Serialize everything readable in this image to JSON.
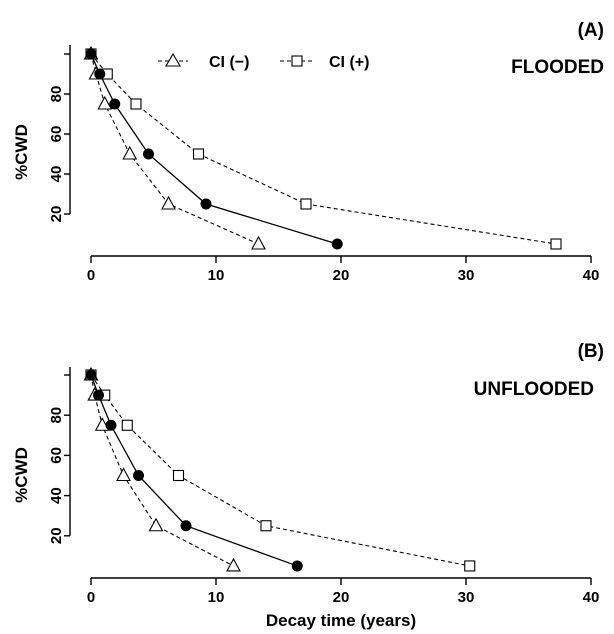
{
  "chart_data": [
    {
      "type": "line",
      "panel_label": "(A)",
      "condition": "FLOODED",
      "xlabel": "",
      "ylabel": "%CWD",
      "xlim": [
        -1,
        41
      ],
      "ylim": [
        0,
        100
      ],
      "xticks": [
        0,
        10,
        20,
        30,
        40
      ],
      "yticks": [
        20,
        40,
        60,
        80
      ],
      "legend": {
        "placement": "top-left",
        "entries": [
          "CI (−)",
          "CI (+)"
        ]
      },
      "series": [
        {
          "name": "",
          "marker": "circle",
          "style": "solid",
          "x": [
            0,
            0.7,
            1.9,
            4.6,
            9.2,
            19.7
          ],
          "y": [
            100,
            90,
            75,
            50,
            25,
            5
          ]
        },
        {
          "name": "CI (−)",
          "marker": "triangle",
          "style": "dashed",
          "x": [
            0,
            0.4,
            1.1,
            3.1,
            6.2,
            13.4
          ],
          "y": [
            100,
            90,
            75,
            50,
            25,
            5
          ]
        },
        {
          "name": "CI (+)",
          "marker": "square",
          "style": "dashed",
          "x": [
            0,
            1.3,
            3.6,
            8.6,
            17.2,
            37.2
          ],
          "y": [
            100,
            90,
            75,
            50,
            25,
            5
          ]
        }
      ]
    },
    {
      "type": "line",
      "panel_label": "(B)",
      "condition": "UNFLOODED",
      "xlabel": "Decay time (years)",
      "ylabel": "%CWD",
      "xlim": [
        -1,
        41
      ],
      "ylim": [
        0,
        100
      ],
      "xticks": [
        0,
        10,
        20,
        30,
        40
      ],
      "yticks": [
        20,
        40,
        60,
        80
      ],
      "series": [
        {
          "name": "",
          "marker": "circle",
          "style": "solid",
          "x": [
            0,
            0.6,
            1.6,
            3.8,
            7.6,
            16.5
          ],
          "y": [
            100,
            90,
            75,
            50,
            25,
            5
          ]
        },
        {
          "name": "CI (−)",
          "marker": "triangle",
          "style": "dashed",
          "x": [
            0,
            0.3,
            0.9,
            2.6,
            5.2,
            11.4
          ],
          "y": [
            100,
            90,
            75,
            50,
            25,
            5
          ]
        },
        {
          "name": "CI (+)",
          "marker": "square",
          "style": "dashed",
          "x": [
            0,
            1.1,
            2.9,
            7.0,
            14.0,
            30.3
          ],
          "y": [
            100,
            90,
            75,
            50,
            25,
            5
          ]
        }
      ]
    }
  ]
}
